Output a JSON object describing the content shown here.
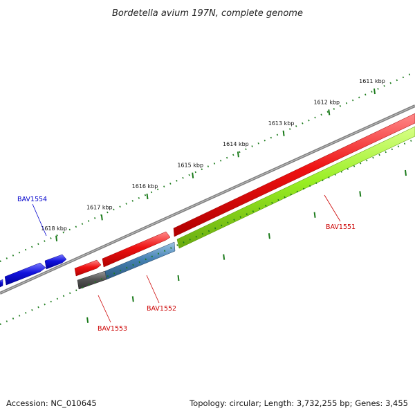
{
  "title": "Bordetella avium 197N, complete genome",
  "footer": {
    "accession": "Accession: NC_010645",
    "topology": "Topology: circular; Length: 3,732,255 bp; Genes: 3,455"
  },
  "ruler": {
    "unit": "kbp",
    "ticks": [
      {
        "kbp": 1611,
        "label": "1611 kbp"
      },
      {
        "kbp": 1612,
        "label": "1612 kbp"
      },
      {
        "kbp": 1613,
        "label": "1613 kbp"
      },
      {
        "kbp": 1614,
        "label": "1614 kbp"
      },
      {
        "kbp": 1615,
        "label": "1615 kbp"
      },
      {
        "kbp": 1616,
        "label": "1616 kbp"
      },
      {
        "kbp": 1617,
        "label": "1617 kbp"
      },
      {
        "kbp": 1618,
        "label": "1618 kbp"
      }
    ]
  },
  "colors": {
    "red_gene": "#ee1111",
    "blue_gene": "#1111dd",
    "steel_gene": "#4682b4",
    "lime_gene": "#99ee22",
    "gray_gene": "#555555",
    "backbone": "#8a8a8a",
    "tick": "#1a7a1a",
    "label_red": "#cc0000",
    "label_blue": "#0000cc"
  },
  "gene_labels": [
    {
      "name": "BAV1551",
      "color": "label_red"
    },
    {
      "name": "BAV1552",
      "color": "label_red"
    },
    {
      "name": "BAV1553",
      "color": "label_red"
    },
    {
      "name": "BAV1554",
      "color": "label_blue"
    }
  ]
}
